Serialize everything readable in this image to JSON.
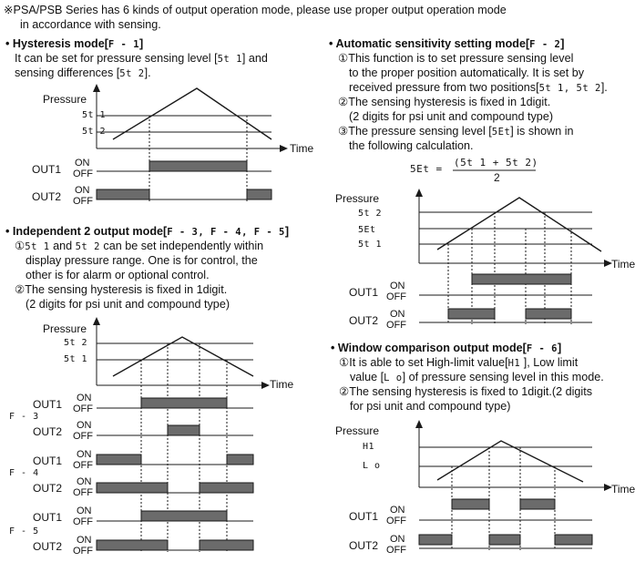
{
  "header": {
    "note_line1": "※PSA/PSB Series has 6 kinds of output operation mode, please use proper output operation mode",
    "note_line2": "in accordance with sensing."
  },
  "hysteresis": {
    "title_prefix": "• Hysteresis mode[",
    "title_code": "F -  1",
    "title_suffix": "]",
    "line1_a": "It can be set for pressure sensing level [",
    "line1_code": "5t  1",
    "line1_b": "] and",
    "line2_a": "sensing differences [",
    "line2_code": "5t 2",
    "line2_b": "]."
  },
  "independent": {
    "title_prefix": "• Independent 2 output mode[",
    "title_code": "F - 3, F - 4, F - 5",
    "title_suffix": "]",
    "item1_num": "①",
    "item1_code_a": "5t  1",
    "item1_and": " and ",
    "item1_code_b": "5t 2",
    "item1_rest": " can be set independently within",
    "item1_line2": "display pressure range. One is for control, the",
    "item1_line3": "other is for alarm or optional control.",
    "item2_line1": "②The sensing hysteresis is fixed in 1digit.",
    "item2_line2": "(2 digits for psi unit and compound type)"
  },
  "automatic": {
    "title_prefix": "• Automatic sensitivity setting mode[",
    "title_code": "F - 2",
    "title_suffix": "]",
    "item1_line1": "①This function is to set pressure sensing level",
    "item1_line2": "to the proper position automatically. It is set by",
    "item1_line3_a": "received pressure from two positions[",
    "item1_line3_code": "5t  1, 5t 2",
    "item1_line3_b": "].",
    "item2_line1": "②The sensing hysteresis is fixed in 1digit.",
    "item2_line2": "(2 digits for psi unit and compound type)",
    "item3_line1_a": "③The pressure sensing level [",
    "item3_line1_code": "5Et",
    "item3_line1_b": "] is shown in",
    "item3_line2": "the following calculation.",
    "formula_lhs": "5Et  =",
    "formula_num": "(5t  1 + 5t 2)",
    "formula_den": "2"
  },
  "window": {
    "title_prefix": "• Window comparison output mode[",
    "title_code": "F - 6",
    "title_suffix": "]",
    "item1_line1_a": "①It is able to set High-limit value[",
    "item1_line1_code": "H1",
    "item1_line1_b": " ], Low limit",
    "item1_line2_a": "value [",
    "item1_line2_code": "L o",
    "item1_line2_b": "] of pressure sensing level in this mode.",
    "item2_line1": "②The sensing hysteresis is fixed to 1digit.(2 digits",
    "item2_line2": "for psi unit and compound type)"
  },
  "diagram_labels": {
    "pressure": "Pressure",
    "time": "Time",
    "out1": "OUT1",
    "out2": "OUT2",
    "on": "ON",
    "off": "OFF",
    "st1": "5t  1",
    "st2": "5t 2",
    "set": "5Et",
    "hi": "H1",
    "lo": "L o",
    "f3": "F - 3",
    "f4": "F - 4",
    "f5": "F - 5"
  },
  "colors": {
    "pulse_fill": "#6b6b6b",
    "line": "#1a1a1a"
  }
}
